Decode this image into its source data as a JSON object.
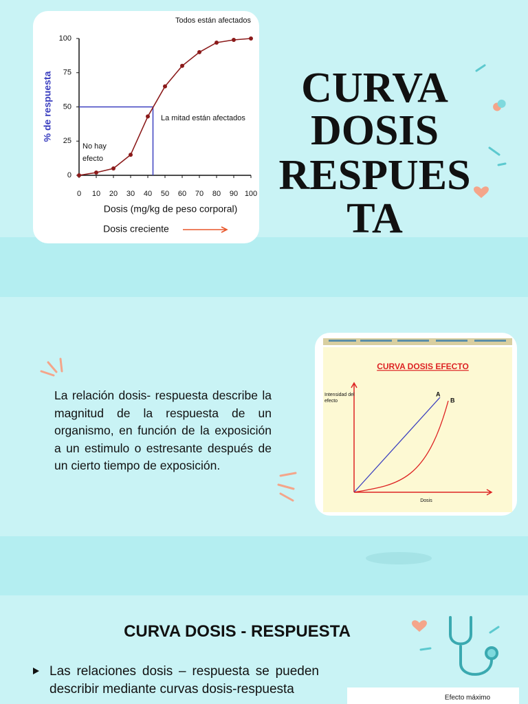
{
  "slide1": {
    "title_lines": [
      "CURVA",
      "DOSIS",
      "RESPUES",
      "TA"
    ],
    "chart": {
      "type": "line",
      "title": "Todos están afectados",
      "x_label": "Dosis (mg/kg de peso corporal)",
      "y_label": "% de respuesta",
      "x": [
        0,
        10,
        20,
        30,
        40,
        50,
        60,
        70,
        80,
        90,
        100
      ],
      "values": [
        0,
        2,
        5,
        15,
        43,
        65,
        80,
        90,
        97,
        99,
        100
      ],
      "color": "#8b1a1a",
      "xlim": [
        0,
        100
      ],
      "ylim": [
        0,
        100
      ],
      "xticks": [
        0,
        10,
        20,
        30,
        40,
        50,
        60,
        70,
        80,
        90,
        100
      ],
      "yticks": [
        0,
        25,
        50,
        75,
        100
      ],
      "reference": {
        "x": 43,
        "y": 50
      },
      "annotations": {
        "none": "No hay efecto",
        "half": "La mitad están afectados",
        "direction": "Dosis creciente"
      }
    }
  },
  "slide2": {
    "paragraph": "La relación dosis- respuesta describe la magnitud de la respuesta de un organismo, en función de la exposición a un estimulo o estresante después de un cierto tiempo de exposición.",
    "figure": {
      "title": "CURVA DOSIS EFECTO",
      "y_label": "Intensidad del efecto",
      "x_label": "Dosis",
      "curve_a": "A",
      "curve_b": "B"
    }
  },
  "slide3": {
    "heading": "CURVA DOSIS - RESPUESTA",
    "bullet": "Las relaciones dosis – respuesta se pueden describir mediante curvas dosis-respuesta",
    "figure_label": "Efecto máximo"
  }
}
